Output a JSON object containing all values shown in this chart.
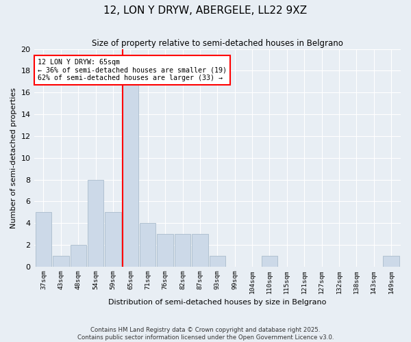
{
  "title": "12, LON Y DRYW, ABERGELE, LL22 9XZ",
  "subtitle": "Size of property relative to semi-detached houses in Belgrano",
  "xlabel": "Distribution of semi-detached houses by size in Belgrano",
  "ylabel": "Number of semi-detached properties",
  "bins": [
    "37sqm",
    "43sqm",
    "48sqm",
    "54sqm",
    "59sqm",
    "65sqm",
    "71sqm",
    "76sqm",
    "82sqm",
    "87sqm",
    "93sqm",
    "99sqm",
    "104sqm",
    "110sqm",
    "115sqm",
    "121sqm",
    "127sqm",
    "132sqm",
    "138sqm",
    "143sqm",
    "149sqm"
  ],
  "values": [
    5,
    1,
    2,
    8,
    5,
    17,
    4,
    3,
    3,
    3,
    1,
    0,
    0,
    1,
    0,
    0,
    0,
    0,
    0,
    0,
    1
  ],
  "bar_color": "#ccd9e8",
  "bar_edge_color": "#aabccc",
  "red_line_index": 5,
  "red_line_label": "12 LON Y DRYW: 65sqm",
  "annotation_line1": "← 36% of semi-detached houses are smaller (19)",
  "annotation_line2": "62% of semi-detached houses are larger (33) →",
  "ylim": [
    0,
    20
  ],
  "yticks": [
    0,
    2,
    4,
    6,
    8,
    10,
    12,
    14,
    16,
    18,
    20
  ],
  "footer_line1": "Contains HM Land Registry data © Crown copyright and database right 2025.",
  "footer_line2": "Contains public sector information licensed under the Open Government Licence v3.0.",
  "background_color": "#e8eef4",
  "plot_background": "#e8eef4"
}
